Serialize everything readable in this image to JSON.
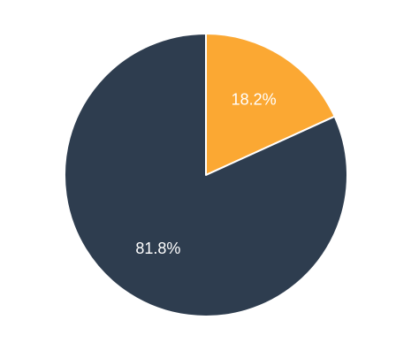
{
  "chart_data": {
    "type": "pie",
    "slices": [
      {
        "label": "18.2%",
        "value": 18.2,
        "color": "#FBA833"
      },
      {
        "label": "81.8%",
        "value": 81.8,
        "color": "#2E3D4F"
      }
    ],
    "start_angle_deg": 0,
    "direction": "clockwise",
    "slice_border_color": "#ffffff",
    "legend": "none"
  }
}
